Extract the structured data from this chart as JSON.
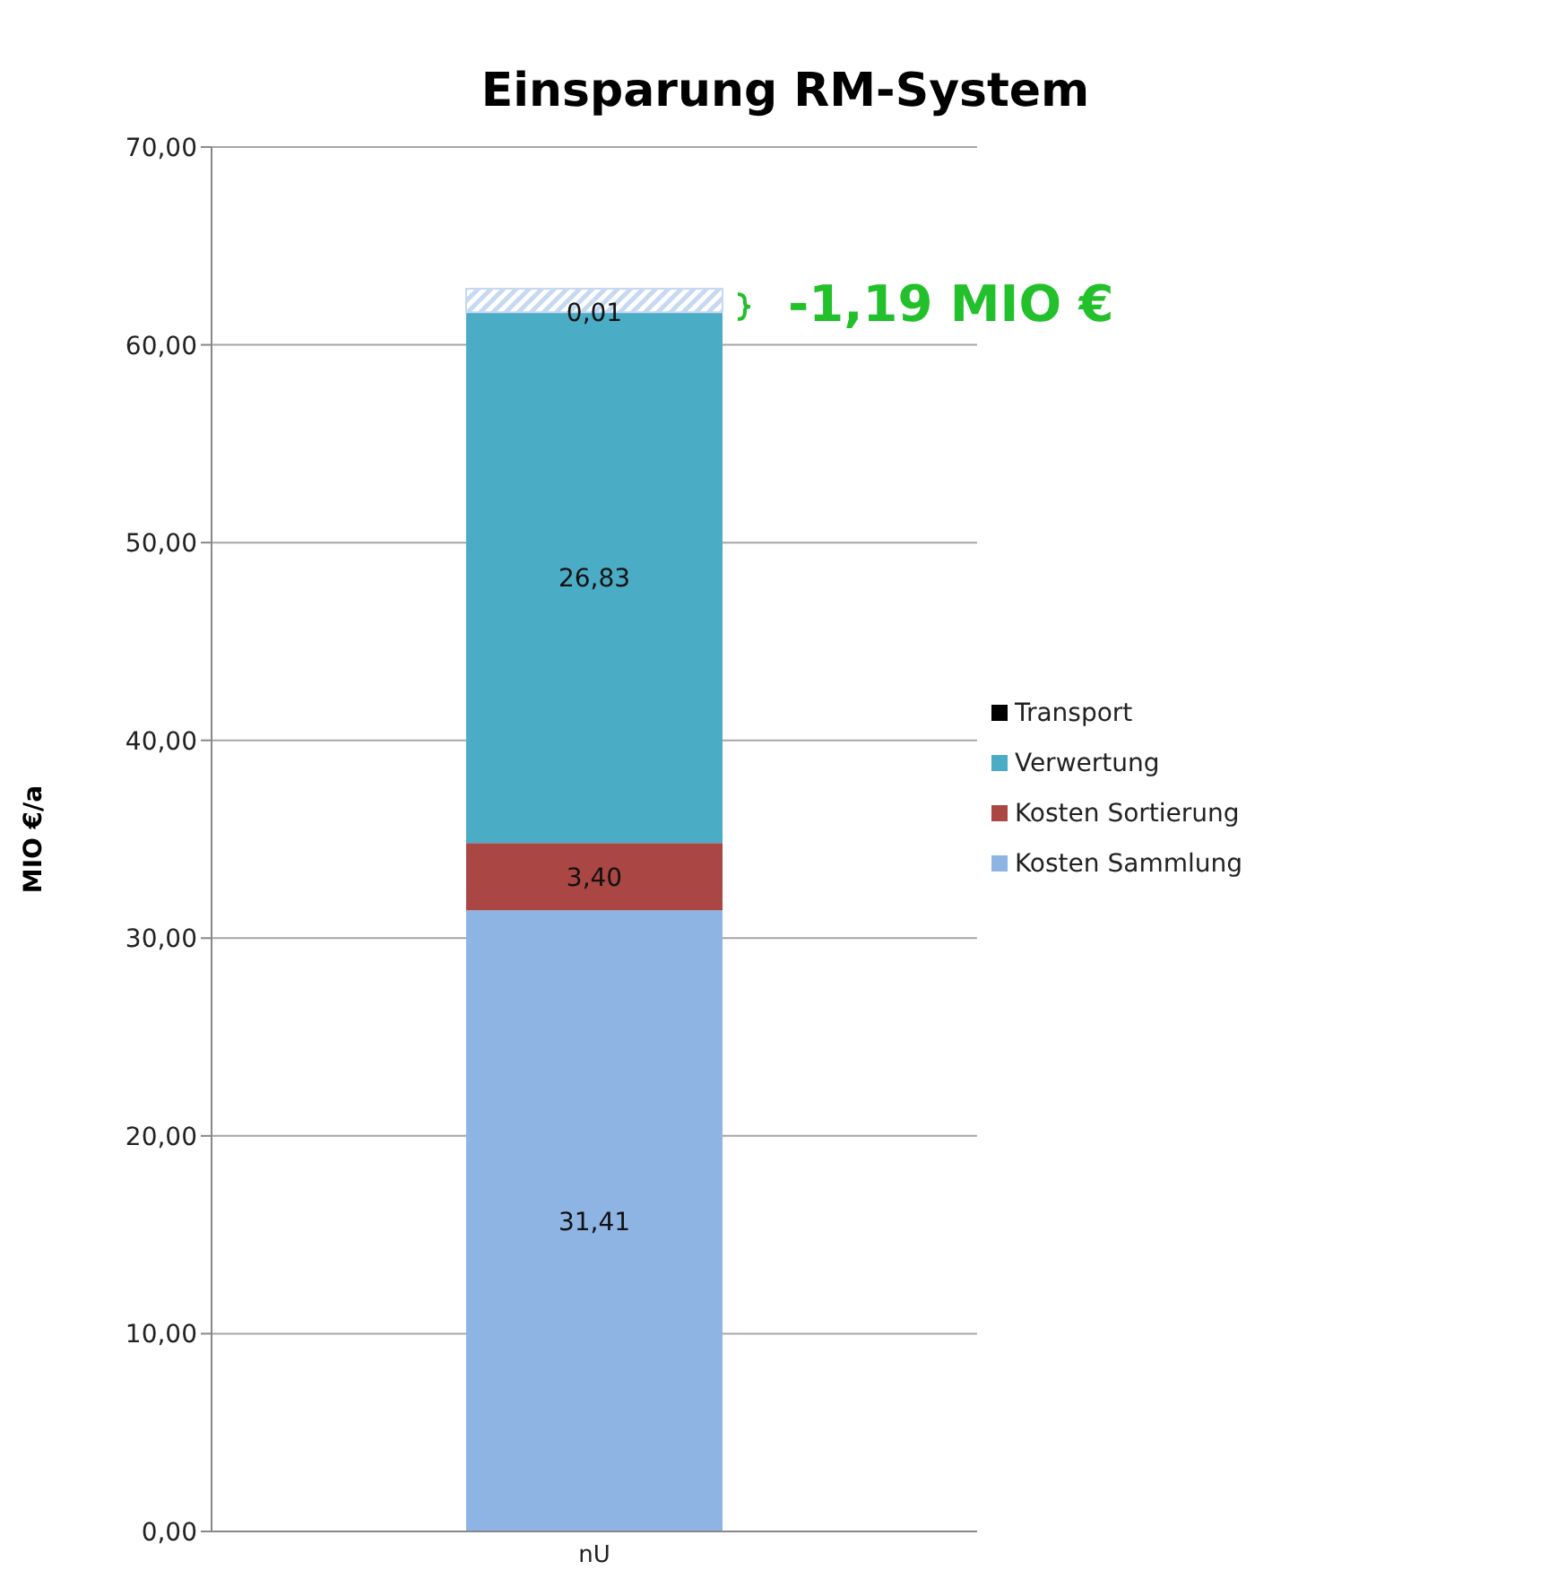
{
  "chart_data": {
    "type": "bar",
    "title": "Einsparung RM-System",
    "ylabel": "MIO €/a",
    "categories": [
      "nU"
    ],
    "stacked": true,
    "series": [
      {
        "name": "Kosten Sammlung",
        "color": "#8eb4e3",
        "values": [
          31.41
        ],
        "value_labels": [
          "31,41"
        ]
      },
      {
        "name": "Kosten Sortierung",
        "color": "#aa4643",
        "values": [
          3.4
        ],
        "value_labels": [
          "3,40"
        ]
      },
      {
        "name": "Verwertung",
        "color": "#4bacc6",
        "values": [
          26.83
        ],
        "value_labels": [
          "26,83"
        ]
      },
      {
        "name": "Transport",
        "color": "#000000",
        "values": [
          0.01
        ],
        "value_labels": [
          "0,01"
        ]
      },
      {
        "color": "#c6d9f1",
        "values": [
          1.19
        ],
        "value_labels": [
          null
        ]
      }
    ],
    "ylim": [
      0,
      70
    ],
    "yticks": [
      {
        "value": 0,
        "label": "0,00"
      },
      {
        "value": 10,
        "label": "10,00"
      },
      {
        "value": 20,
        "label": "20,00"
      },
      {
        "value": 30,
        "label": "30,00"
      },
      {
        "value": 40,
        "label": "40,00"
      },
      {
        "value": 50,
        "label": "50,00"
      },
      {
        "value": 60,
        "label": "60,00"
      },
      {
        "value": 70,
        "label": "70,00"
      }
    ],
    "grid": "y",
    "legend": "right",
    "annotations": [
      "-1,19 MIO €"
    ]
  }
}
